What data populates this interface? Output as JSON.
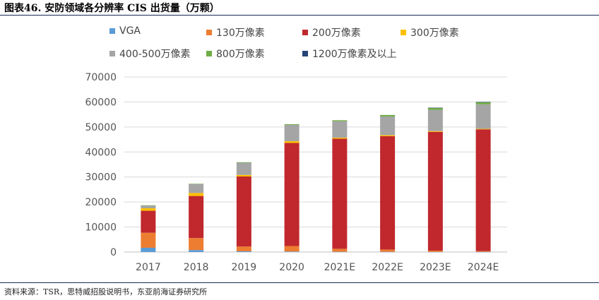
{
  "header": {
    "title": "图表46. 安防领域各分辨率 CIS 出货量（万颗）"
  },
  "footer": {
    "source": "资料来源：TSR，思特威招股说明书，东亚前海证券研究所"
  },
  "chart_data": {
    "type": "bar",
    "stacked": true,
    "title": "图表46. 安防领域各分辨率 CIS 出货量（万颗）",
    "xlabel": "",
    "ylabel": "",
    "ylim": [
      0,
      70000
    ],
    "yticks": [
      0,
      10000,
      20000,
      30000,
      40000,
      50000,
      60000,
      70000
    ],
    "grid": true,
    "legend_position": "top",
    "categories": [
      "2017",
      "2018",
      "2019",
      "2020",
      "2021E",
      "2022E",
      "2023E",
      "2024E"
    ],
    "series": [
      {
        "name": "VGA",
        "color": "#5b9bd5",
        "values": [
          1700,
          800,
          300,
          200,
          100,
          100,
          50,
          50
        ]
      },
      {
        "name": "130万像素",
        "color": "#ed7d31",
        "values": [
          6000,
          4800,
          1900,
          2200,
          1200,
          900,
          500,
          300
        ]
      },
      {
        "name": "200万像素",
        "color": "#c0282d",
        "values": [
          8800,
          16800,
          28000,
          41200,
          44000,
          45300,
          47500,
          48700
        ]
      },
      {
        "name": "300万像素",
        "color": "#ffc000",
        "values": [
          1000,
          1200,
          600,
          700,
          400,
          400,
          300,
          200
        ]
      },
      {
        "name": "400-500万像素",
        "color": "#a5a5a5",
        "values": [
          1100,
          3600,
          4900,
          6500,
          6600,
          7500,
          8500,
          9800
        ]
      },
      {
        "name": "800万像素",
        "color": "#70ad47",
        "values": [
          100,
          100,
          200,
          300,
          400,
          600,
          800,
          900
        ]
      },
      {
        "name": "1200万像素及以上",
        "color": "#264478",
        "values": [
          0,
          0,
          0,
          0,
          0,
          0,
          50,
          50
        ]
      }
    ]
  }
}
